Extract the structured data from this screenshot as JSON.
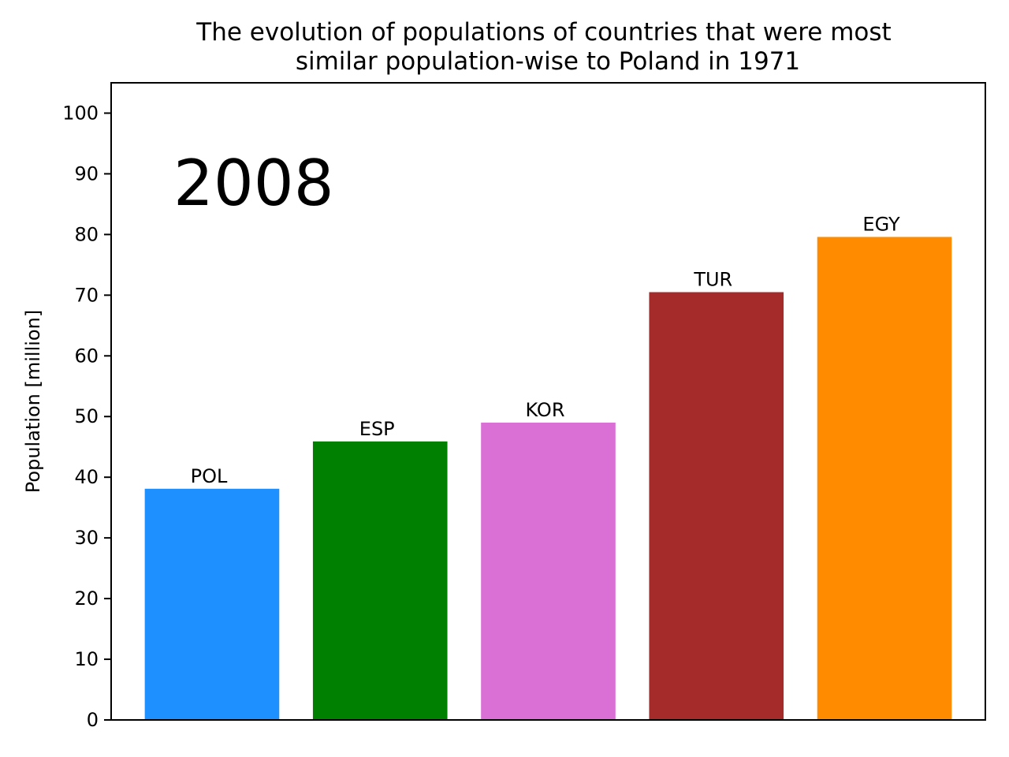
{
  "chart_data": {
    "type": "bar",
    "title_lines": [
      "The evolution of populations of countries that were most",
      "similar population-wise to Poland in 1971"
    ],
    "ylabel": "Population [million]",
    "xlabel": "",
    "annotation": "2008",
    "ylim": [
      0,
      105
    ],
    "yticks": [
      0,
      10,
      20,
      30,
      40,
      50,
      60,
      70,
      80,
      90,
      100
    ],
    "grid": false,
    "categories": [
      "POL",
      "ESP",
      "KOR",
      "TUR",
      "EGY"
    ],
    "values": [
      38.1,
      45.9,
      49.0,
      70.5,
      79.6
    ],
    "colors": [
      "#1e90ff",
      "#008000",
      "#da70d6",
      "#a52a2a",
      "#ff8c00"
    ]
  }
}
